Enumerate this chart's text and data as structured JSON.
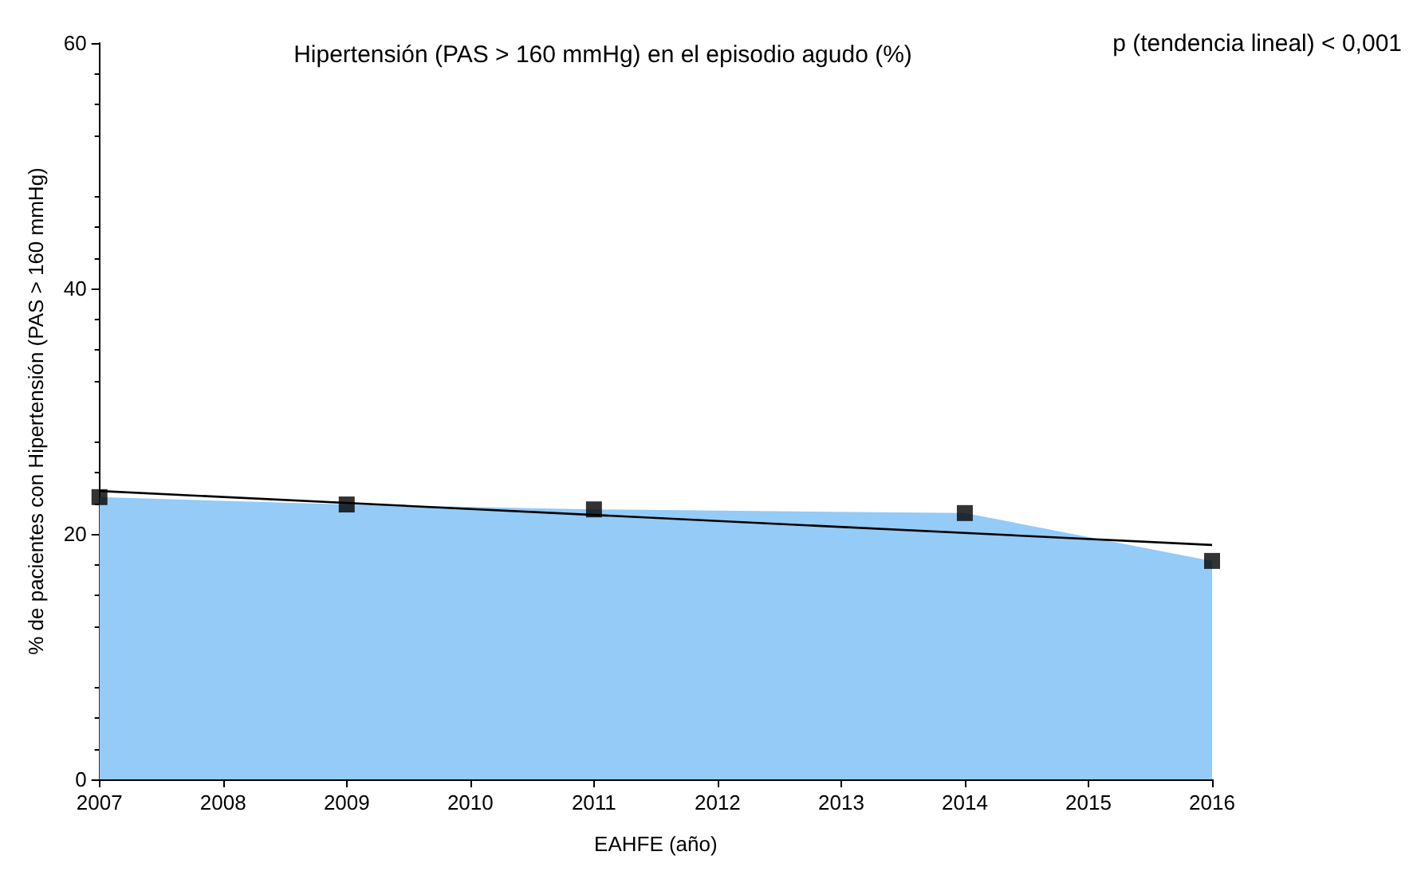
{
  "chart_data": {
    "type": "area",
    "title": "Hipertensión (PAS > 160 mmHg) en el episodio agudo (%)",
    "xlabel": "EAHFE (año)",
    "ylabel": "% de pacientes con Hipertensión (PAS > 160 mmHg)",
    "annotations": [
      "p (tendencia lineal) < 0,001"
    ],
    "x": [
      2007,
      2009,
      2011,
      2014,
      2016
    ],
    "series": [
      {
        "color": "#94cbf7",
        "values": [
          23.0,
          22.4,
          22.0,
          21.7,
          17.8
        ],
        "marker": "none"
      },
      {
        "type": "scatter",
        "color": "#000000",
        "values": [
          23.0,
          22.4,
          22.0,
          21.7,
          17.8
        ],
        "marker": "square"
      },
      {
        "type": "line",
        "color": "#000000",
        "x": [
          2007,
          2016
        ],
        "values": [
          23.5,
          19.1
        ],
        "marker": "none",
        "line_style": "solid"
      }
    ],
    "xlim": [
      2007,
      2016
    ],
    "xticks": [
      2007,
      2008,
      2009,
      2010,
      2011,
      2012,
      2013,
      2014,
      2015,
      2016
    ],
    "ylim": [
      0,
      60
    ],
    "yticks": [
      0,
      20,
      40,
      60
    ],
    "grid": false
  }
}
